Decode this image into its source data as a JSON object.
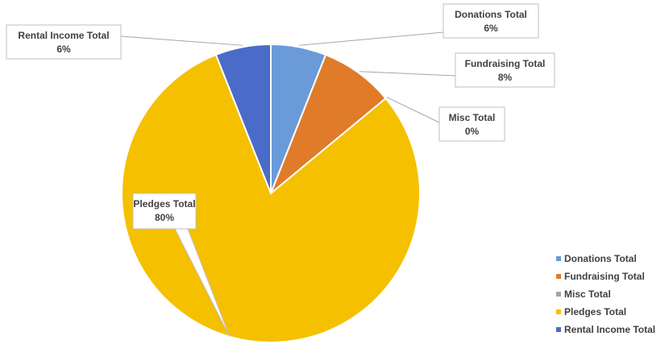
{
  "chart_data": {
    "type": "pie",
    "title": "",
    "categories": [
      "Donations Total",
      "Fundraising Total",
      "Misc Total",
      "Pledges Total",
      "Rental Income Total"
    ],
    "values": [
      6,
      8,
      0,
      80,
      6
    ],
    "value_labels": [
      "6%",
      "8%",
      "0%",
      "80%",
      "6%"
    ],
    "colors": [
      "#6a9bd8",
      "#e07b2a",
      "#a5a5a5",
      "#f5c000",
      "#4a6cc8"
    ],
    "legend_position": "bottom-right"
  }
}
